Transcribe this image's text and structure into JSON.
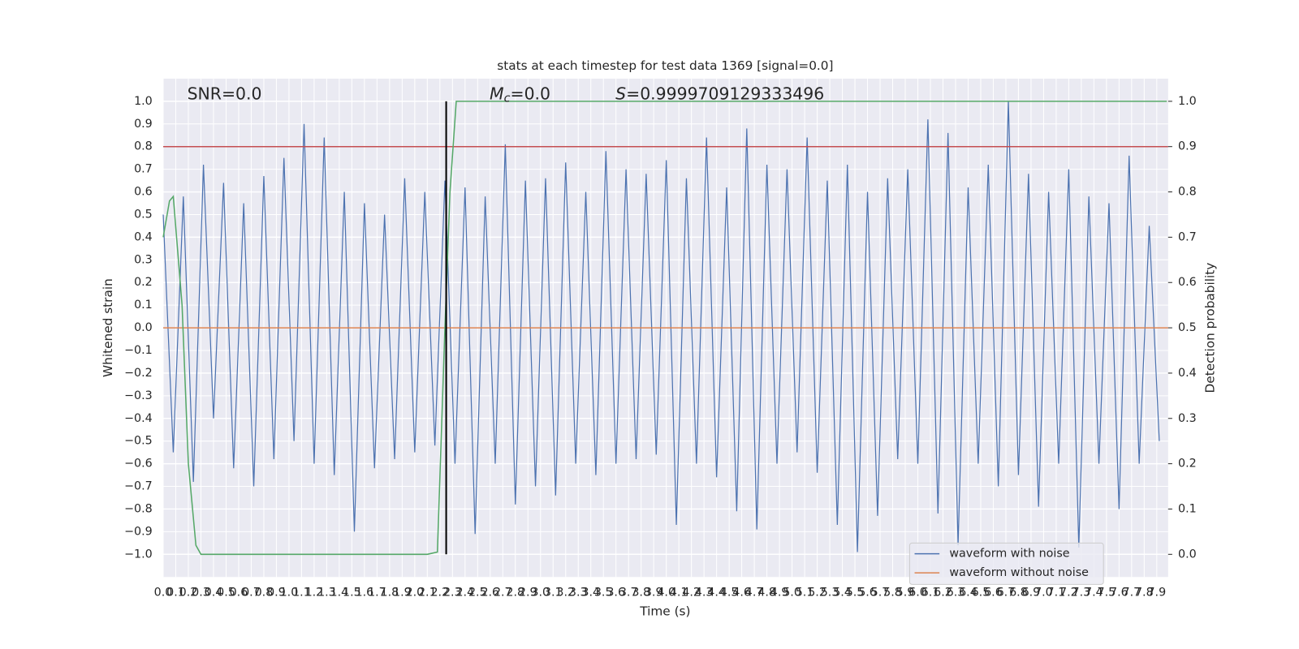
{
  "chart_data": {
    "type": "line",
    "title": "stats at each timestep for test data 1369 [signal=0.0]",
    "xlabel": "Time (s)",
    "ylabel": "Whitened strain",
    "y2label": "Detection probability",
    "annotations": {
      "snr": "SNR=0.0",
      "mc_symbol": "M",
      "mc_subscript": "c",
      "mc_text": "=0.0",
      "s_symbol": "S",
      "s_text": "=0.9999709129333496"
    },
    "xlim": [
      0,
      7.99
    ],
    "ylim": [
      -1.1,
      1.1
    ],
    "y2lim": [
      -0.05,
      1.05
    ],
    "grid": true,
    "legend": "lower right",
    "xticks": [
      {
        "value": 0,
        "label": "0.0"
      },
      0.1,
      0.2,
      0.3,
      0.4,
      0.5,
      0.6,
      0.7,
      0.8,
      0.9,
      {
        "value": 1,
        "label": "1.0"
      },
      1.1,
      1.2,
      1.3,
      1.4,
      1.5,
      1.6,
      1.7,
      1.8,
      1.9,
      {
        "value": 2,
        "label": "2.0"
      },
      2.1,
      2.2,
      2.3,
      2.4,
      2.5,
      2.6,
      2.7,
      2.8,
      2.9,
      {
        "value": 3,
        "label": "3.0"
      },
      3.1,
      3.2,
      3.3,
      3.4,
      3.5,
      3.6,
      3.7,
      3.8,
      3.9,
      {
        "value": 4,
        "label": "4.0"
      },
      4.1,
      4.2,
      4.3,
      4.4,
      4.5,
      4.6,
      4.7,
      4.8,
      4.9,
      {
        "value": 5,
        "label": "5.0"
      },
      5.1,
      5.2,
      5.3,
      5.4,
      5.5,
      5.6,
      5.7,
      5.8,
      5.9,
      {
        "value": 6,
        "label": "6.0"
      },
      6.1,
      6.2,
      6.3,
      6.4,
      6.5,
      6.6,
      6.7,
      6.8,
      6.9,
      {
        "value": 7,
        "label": "7.0"
      },
      7.1,
      7.2,
      7.3,
      7.4,
      7.5,
      7.6,
      7.7,
      7.8,
      7.9
    ],
    "yticks": [
      {
        "value": -1,
        "label": "−1.0"
      },
      {
        "value": -0.9,
        "label": "−0.9"
      },
      {
        "value": -0.8,
        "label": "−0.8"
      },
      {
        "value": -0.7,
        "label": "−0.7"
      },
      {
        "value": -0.6,
        "label": "−0.6"
      },
      {
        "value": -0.5,
        "label": "−0.5"
      },
      {
        "value": -0.4,
        "label": "−0.4"
      },
      {
        "value": -0.3,
        "label": "−0.3"
      },
      {
        "value": -0.2,
        "label": "−0.2"
      },
      {
        "value": -0.1,
        "label": "−0.1"
      },
      {
        "value": 0,
        "label": "0.0"
      },
      0.1,
      0.2,
      0.3,
      0.4,
      0.5,
      0.6,
      0.7,
      0.8,
      0.9,
      {
        "value": 1,
        "label": "1.0"
      }
    ],
    "y2ticks": [
      {
        "value": 0,
        "label": "0.0"
      },
      0.1,
      0.2,
      0.3,
      0.4,
      0.5,
      0.6,
      0.7,
      0.8,
      0.9,
      {
        "value": 1,
        "label": "1.0"
      }
    ],
    "series": [
      {
        "name": "waveform with noise",
        "color": "#4c72b0",
        "x": [
          0,
          0.08,
          0.16,
          0.24,
          0.32,
          0.4,
          0.48,
          0.56,
          0.64,
          0.72,
          0.8,
          0.88,
          0.96,
          1.04,
          1.12,
          1.2,
          1.28,
          1.36,
          1.44,
          1.52,
          1.6,
          1.68,
          1.76,
          1.84,
          1.92,
          2,
          2.08,
          2.16,
          2.24,
          2.32,
          2.4,
          2.48,
          2.56,
          2.64,
          2.72,
          2.8,
          2.88,
          2.96,
          3.04,
          3.12,
          3.2,
          3.28,
          3.36,
          3.44,
          3.52,
          3.6,
          3.68,
          3.76,
          3.84,
          3.92,
          4,
          4.08,
          4.16,
          4.24,
          4.32,
          4.4,
          4.48,
          4.56,
          4.64,
          4.72,
          4.8,
          4.88,
          4.96,
          5.04,
          5.12,
          5.2,
          5.28,
          5.36,
          5.44,
          5.52,
          5.6,
          5.68,
          5.76,
          5.84,
          5.92,
          6,
          6.08,
          6.16,
          6.24,
          6.32,
          6.4,
          6.48,
          6.56,
          6.64,
          6.72,
          6.8,
          6.88,
          6.96,
          7.04,
          7.12,
          7.2,
          7.28,
          7.36,
          7.44,
          7.52,
          7.6,
          7.68,
          7.76,
          7.84,
          7.92
        ],
        "values": [
          0.5,
          -0.55,
          0.58,
          -0.68,
          0.72,
          -0.4,
          0.64,
          -0.62,
          0.55,
          -0.7,
          0.67,
          -0.58,
          0.75,
          -0.5,
          0.9,
          -0.6,
          0.84,
          -0.65,
          0.6,
          -0.9,
          0.55,
          -0.62,
          0.5,
          -0.58,
          0.66,
          -0.55,
          0.6,
          -0.52,
          0.65,
          -0.6,
          0.62,
          -0.91,
          0.58,
          -0.6,
          0.81,
          -0.78,
          0.65,
          -0.7,
          0.66,
          -0.74,
          0.73,
          -0.6,
          0.6,
          -0.65,
          0.78,
          -0.6,
          0.7,
          -0.58,
          0.68,
          -0.56,
          0.74,
          -0.87,
          0.66,
          -0.6,
          0.84,
          -0.66,
          0.62,
          -0.81,
          0.88,
          -0.89,
          0.72,
          -0.6,
          0.7,
          -0.55,
          0.84,
          -0.64,
          0.65,
          -0.87,
          0.72,
          -0.99,
          0.6,
          -0.83,
          0.66,
          -0.58,
          0.7,
          -0.6,
          0.92,
          -0.82,
          0.86,
          -0.96,
          0.62,
          -0.6,
          0.72,
          -0.7,
          1.0,
          -0.65,
          0.68,
          -0.79,
          0.6,
          -0.6,
          0.7,
          -0.97,
          0.58,
          -0.6,
          0.55,
          -0.8,
          0.76,
          -0.6,
          0.45,
          -0.5
        ]
      },
      {
        "name": "waveform without noise",
        "color": "#dd8452",
        "x": [
          0,
          7.99
        ],
        "values": [
          0,
          0
        ]
      }
    ],
    "probability": {
      "color": "#55a868",
      "axis": "y2",
      "x": [
        0,
        0.05,
        0.08,
        0.15,
        0.2,
        0.26,
        0.3,
        1.5,
        2.1,
        2.18,
        2.24,
        2.28,
        2.33,
        7.98
      ],
      "values": [
        0.7,
        0.78,
        0.79,
        0.55,
        0.2,
        0.02,
        0,
        0,
        0,
        0.005,
        0.5,
        0.8,
        1,
        1
      ]
    },
    "threshold": {
      "value": 0.9,
      "axis": "y2",
      "color": "#c44e52"
    },
    "vline": {
      "x": 2.25,
      "ymin": -1,
      "ymax": 1,
      "color": "#000000"
    }
  }
}
